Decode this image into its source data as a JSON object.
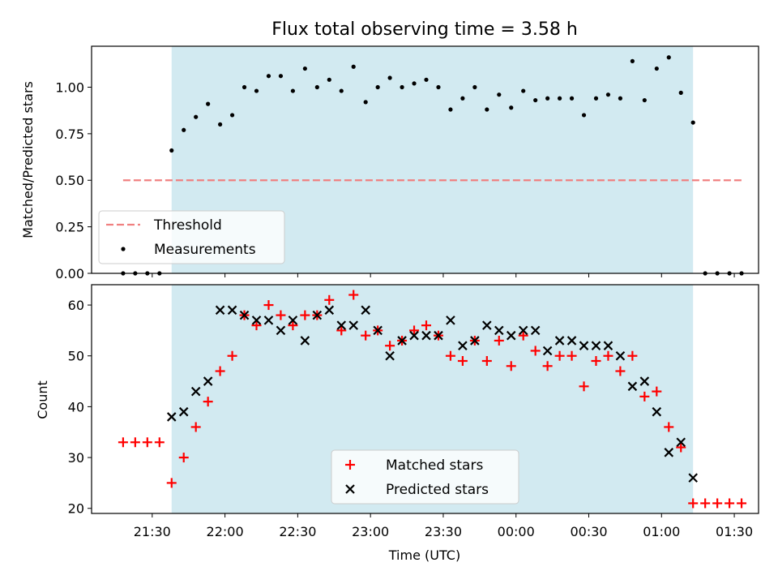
{
  "title": "Flux total observing time = 3.58 h",
  "colors": {
    "observing_span": "#add8e6",
    "threshold": "#f08080",
    "measurements": "#000000",
    "matched": "#ff0000",
    "predicted": "#000000"
  },
  "chart_data": [
    {
      "type": "scatter",
      "ylabel": "Matched/Predicted stars",
      "ylim": [
        0,
        1.22
      ],
      "yticks": [
        0.0,
        0.25,
        0.5,
        0.75,
        1.0
      ],
      "ytick_labels": [
        "0.00",
        "0.25",
        "0.50",
        "0.75",
        "1.00"
      ],
      "observing_span": [
        "21:38",
        "01:13"
      ],
      "threshold": {
        "value": 0.5,
        "x_range": [
          "21:18",
          "01:33"
        ]
      },
      "legend": {
        "position": "lower-left",
        "entries": [
          "Threshold",
          "Measurements"
        ]
      },
      "series": [
        {
          "name": "Measurements",
          "x": [
            "21:18",
            "21:23",
            "21:28",
            "21:33",
            "21:38",
            "21:43",
            "21:48",
            "21:53",
            "21:58",
            "22:03",
            "22:08",
            "22:13",
            "22:18",
            "22:23",
            "22:28",
            "22:33",
            "22:38",
            "22:43",
            "22:48",
            "22:53",
            "22:58",
            "23:03",
            "23:08",
            "23:13",
            "23:18",
            "23:23",
            "23:28",
            "23:33",
            "23:38",
            "23:43",
            "23:48",
            "23:53",
            "23:58",
            "00:03",
            "00:08",
            "00:13",
            "00:18",
            "00:23",
            "00:28",
            "00:33",
            "00:38",
            "00:43",
            "00:48",
            "00:53",
            "00:58",
            "01:03",
            "01:08",
            "01:13",
            "01:18",
            "01:23",
            "01:28",
            "01:33"
          ],
          "y": [
            0,
            0,
            0,
            0,
            0.66,
            0.77,
            0.84,
            0.91,
            0.8,
            0.85,
            1.0,
            0.98,
            1.06,
            1.06,
            0.98,
            1.1,
            1.0,
            1.04,
            0.98,
            1.11,
            0.92,
            1.0,
            1.05,
            1.0,
            1.02,
            1.04,
            1.0,
            0.88,
            0.94,
            1.0,
            0.88,
            0.96,
            0.89,
            0.98,
            0.93,
            0.94,
            0.94,
            0.94,
            0.85,
            0.94,
            0.96,
            0.94,
            1.14,
            0.93,
            1.1,
            1.16,
            0.97,
            0.81,
            0,
            0,
            0,
            0
          ]
        }
      ]
    },
    {
      "type": "scatter",
      "ylabel": "Count",
      "xlabel": "Time (UTC)",
      "ylim": [
        19,
        64
      ],
      "yticks": [
        20,
        30,
        40,
        50,
        60
      ],
      "xticks": [
        "21:30",
        "22:00",
        "22:30",
        "23:00",
        "23:30",
        "00:00",
        "00:30",
        "01:00",
        "01:30"
      ],
      "observing_span": [
        "21:38",
        "01:13"
      ],
      "legend": {
        "position": "lower-center",
        "entries": [
          "Matched stars",
          "Predicted stars"
        ]
      },
      "series": [
        {
          "name": "Matched stars",
          "x": [
            "21:18",
            "21:23",
            "21:28",
            "21:33",
            "21:38",
            "21:43",
            "21:48",
            "21:53",
            "21:58",
            "22:03",
            "22:08",
            "22:13",
            "22:18",
            "22:23",
            "22:28",
            "22:33",
            "22:38",
            "22:43",
            "22:48",
            "22:53",
            "22:58",
            "23:03",
            "23:08",
            "23:13",
            "23:18",
            "23:23",
            "23:28",
            "23:33",
            "23:38",
            "23:43",
            "23:48",
            "23:53",
            "23:58",
            "00:03",
            "00:08",
            "00:13",
            "00:18",
            "00:23",
            "00:28",
            "00:33",
            "00:38",
            "00:43",
            "00:48",
            "00:53",
            "00:58",
            "01:03",
            "01:08",
            "01:13",
            "01:18",
            "01:23",
            "01:28",
            "01:33"
          ],
          "y": [
            33,
            33,
            33,
            33,
            25,
            30,
            36,
            41,
            47,
            50,
            58,
            56,
            60,
            58,
            56,
            58,
            58,
            61,
            55,
            62,
            54,
            55,
            52,
            53,
            55,
            56,
            54,
            50,
            49,
            53,
            49,
            53,
            48,
            54,
            51,
            48,
            50,
            50,
            44,
            49,
            50,
            47,
            50,
            42,
            43,
            36,
            32,
            21,
            21,
            21,
            21,
            21
          ]
        },
        {
          "name": "Predicted stars",
          "x": [
            "21:38",
            "21:43",
            "21:48",
            "21:53",
            "21:58",
            "22:03",
            "22:08",
            "22:13",
            "22:18",
            "22:23",
            "22:28",
            "22:33",
            "22:38",
            "22:43",
            "22:48",
            "22:53",
            "22:58",
            "23:03",
            "23:08",
            "23:13",
            "23:18",
            "23:23",
            "23:28",
            "23:33",
            "23:38",
            "23:43",
            "23:48",
            "23:53",
            "23:58",
            "00:03",
            "00:08",
            "00:13",
            "00:18",
            "00:23",
            "00:28",
            "00:33",
            "00:38",
            "00:43",
            "00:48",
            "00:53",
            "00:58",
            "01:03",
            "01:08",
            "01:13"
          ],
          "y": [
            38,
            39,
            43,
            45,
            59,
            59,
            58,
            57,
            57,
            55,
            57,
            53,
            58,
            59,
            56,
            56,
            59,
            55,
            50,
            53,
            54,
            54,
            54,
            57,
            52,
            53,
            56,
            55,
            54,
            55,
            55,
            51,
            53,
            53,
            52,
            52,
            52,
            50,
            44,
            45,
            39,
            31,
            33,
            26
          ]
        }
      ]
    }
  ]
}
